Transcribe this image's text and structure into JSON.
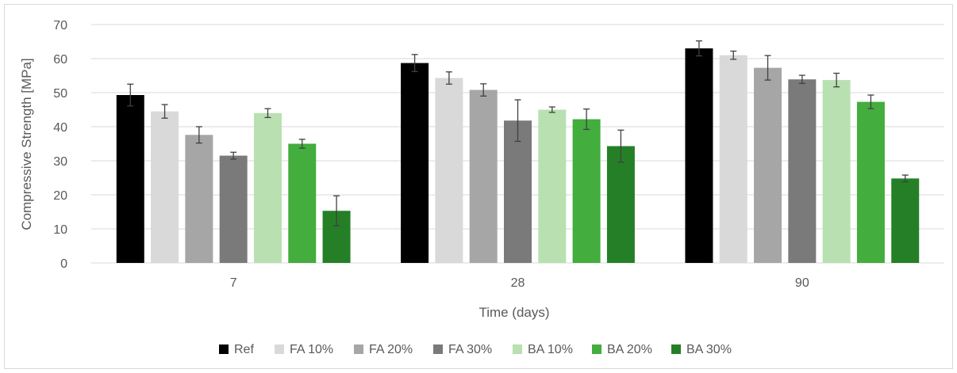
{
  "chart_data": {
    "type": "bar",
    "categories": [
      "7",
      "28",
      "90"
    ],
    "xlabel": "Time (days)",
    "ylabel": "Compressive Strength [MPa]",
    "ylim": [
      0,
      70
    ],
    "yticks": [
      0,
      10,
      20,
      30,
      40,
      50,
      60,
      70
    ],
    "grid": true,
    "legend_position": "bottom",
    "series": [
      {
        "name": "Ref",
        "color": "#000000",
        "values": [
          49.3,
          58.7,
          63.0
        ],
        "errors": [
          3.2,
          2.5,
          2.2
        ]
      },
      {
        "name": "FA 10%",
        "color": "#d9d9d9",
        "values": [
          44.5,
          54.3,
          61.0
        ],
        "errors": [
          2.0,
          1.8,
          1.2
        ]
      },
      {
        "name": "FA 20%",
        "color": "#a6a6a6",
        "values": [
          37.6,
          50.8,
          57.3
        ],
        "errors": [
          2.4,
          1.8,
          3.6
        ]
      },
      {
        "name": "FA 30%",
        "color": "#7a7a7a",
        "values": [
          31.5,
          41.8,
          53.9
        ],
        "errors": [
          1.0,
          6.1,
          1.2
        ]
      },
      {
        "name": "BA 10%",
        "color": "#b8e0b0",
        "values": [
          44.0,
          45.0,
          53.7
        ],
        "errors": [
          1.3,
          0.8,
          2.0
        ]
      },
      {
        "name": "BA 20%",
        "color": "#43ad3e",
        "values": [
          35.0,
          42.2,
          47.3
        ],
        "errors": [
          1.3,
          3.0,
          2.0
        ]
      },
      {
        "name": "BA 30%",
        "color": "#257f27",
        "values": [
          15.3,
          34.3,
          24.8
        ],
        "errors": [
          4.4,
          4.7,
          1.0
        ]
      }
    ]
  }
}
